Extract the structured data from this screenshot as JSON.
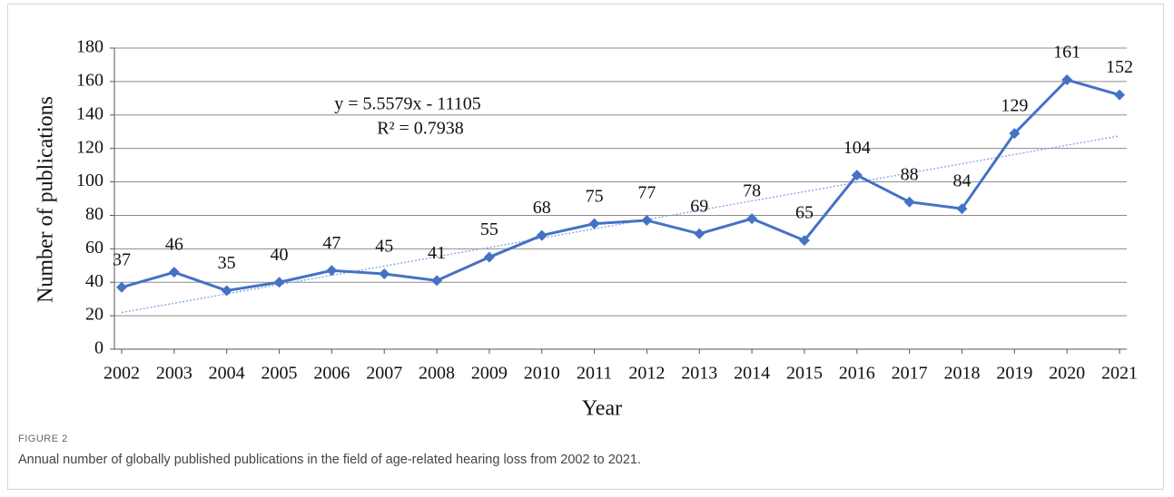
{
  "chart_data": {
    "type": "line",
    "y_label": "Number of publications",
    "x_label": "Year",
    "categories": [
      "2002",
      "2003",
      "2004",
      "2005",
      "2006",
      "2007",
      "2008",
      "2009",
      "2010",
      "2011",
      "2012",
      "2013",
      "2014",
      "2015",
      "2016",
      "2017",
      "2018",
      "2019",
      "2020",
      "2021"
    ],
    "series": [
      {
        "name": "Number of publications",
        "color": "#4472c4",
        "values": [
          37,
          46,
          35,
          40,
          47,
          45,
          41,
          55,
          68,
          75,
          77,
          69,
          78,
          65,
          104,
          88,
          84,
          129,
          161,
          152
        ]
      }
    ],
    "trendline": {
      "slope": 5.5579,
      "intercept": -11105,
      "color": "#7ea3e6",
      "equation": "y = 5.5579x - 11105",
      "r2": "R² = 0.7938"
    },
    "ylim": [
      0,
      180
    ],
    "yticks": [
      0,
      20,
      40,
      60,
      80,
      100,
      120,
      140,
      160,
      180
    ],
    "grid": true
  },
  "caption": {
    "label": "FIGURE 2",
    "text": "Annual number of globally published publications in the field of age-related hearing loss from 2002 to 2021."
  }
}
